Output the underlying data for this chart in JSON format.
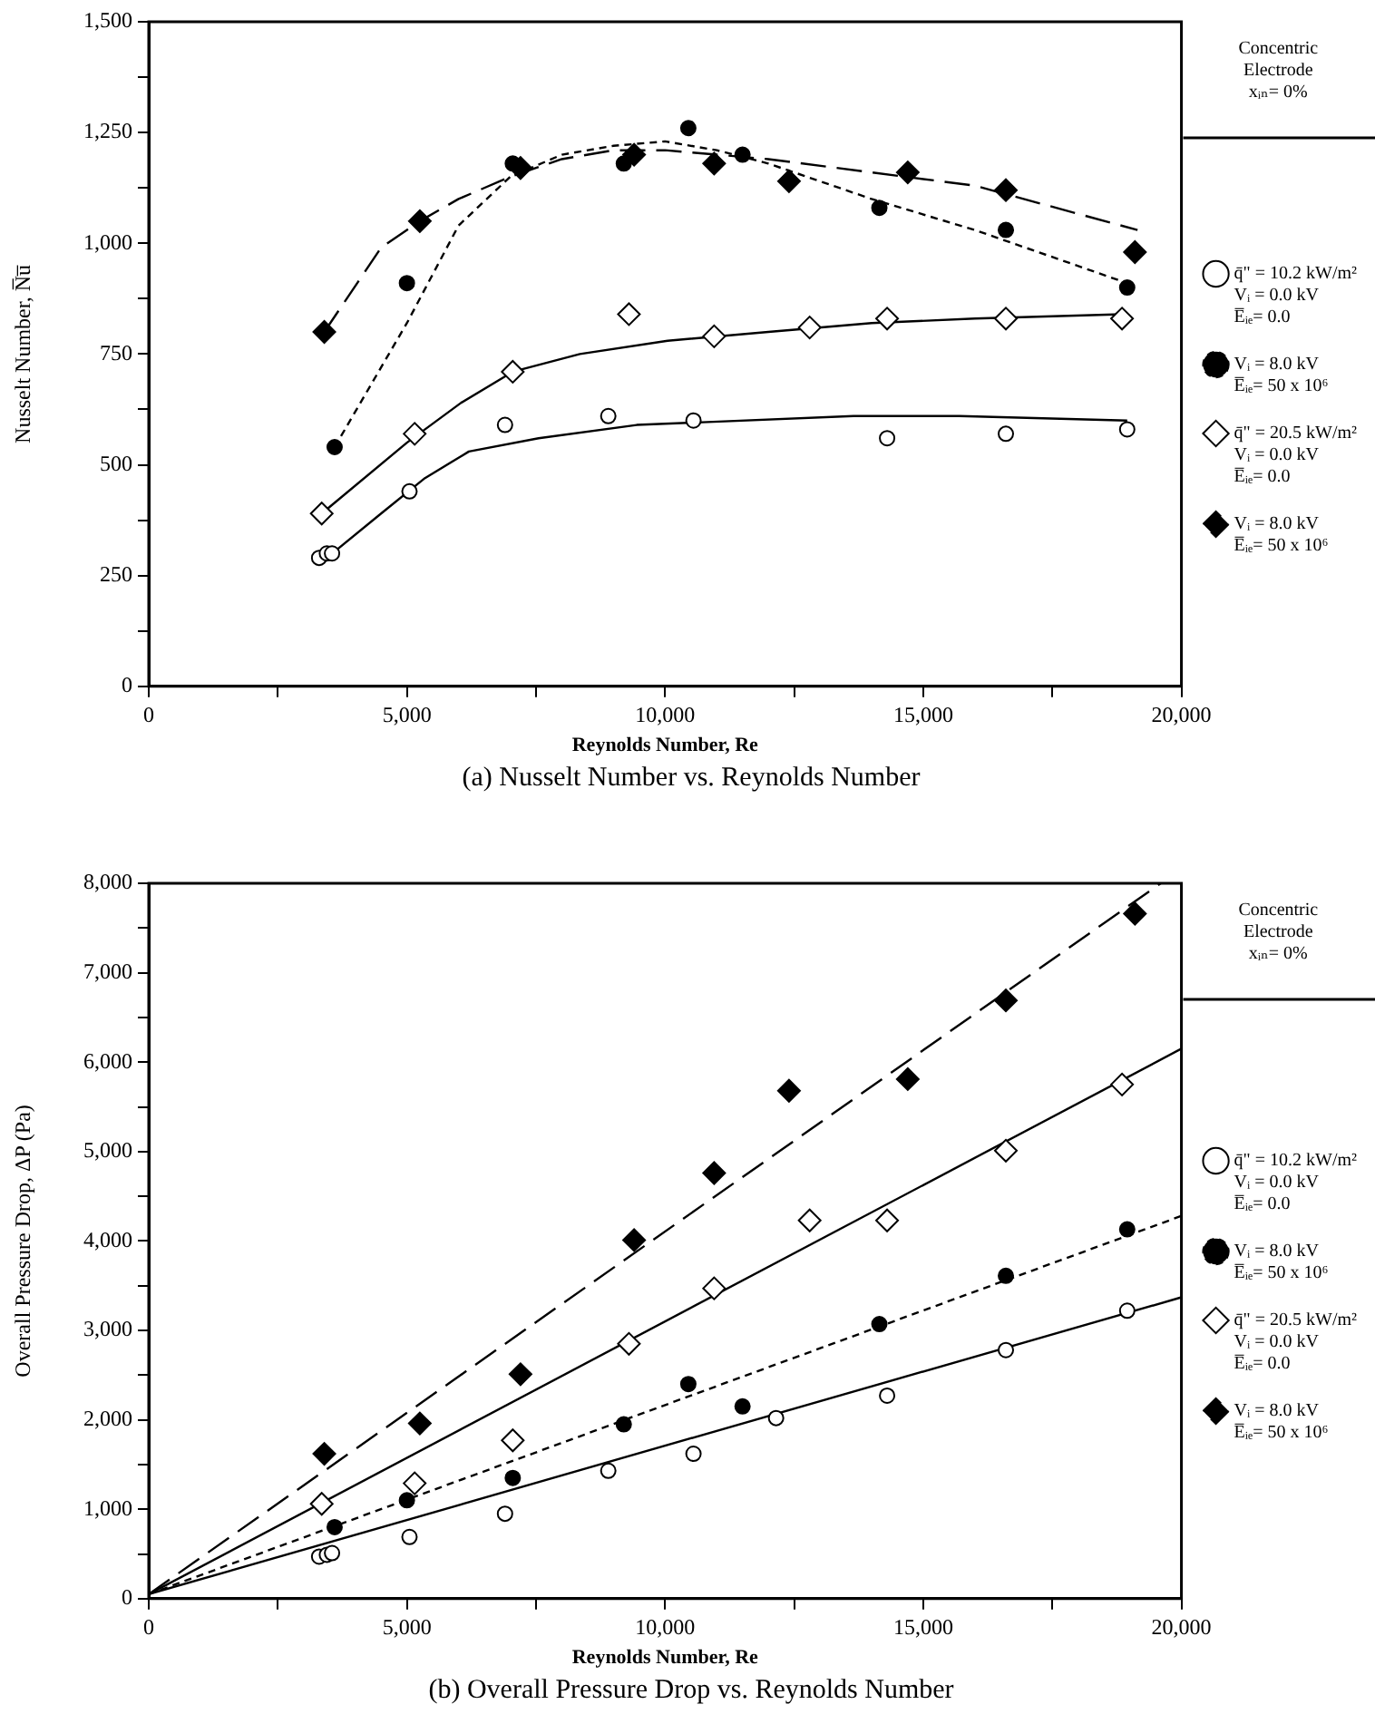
{
  "chart_data": [
    {
      "type": "scatter",
      "title": "(a) Nusselt Number vs. Reynolds Number",
      "xlabel": "Reynolds Number, Re",
      "ylabel": "Nusselt Number, N̅u̅",
      "legend_title": "Concentric\nElectrode\nxᵢₙ= 0%",
      "legend": "right",
      "grid": false,
      "xlim": [
        0,
        20000
      ],
      "xticks": [
        0,
        {
          "value": 2500,
          "label": null
        },
        {
          "value": 5000,
          "label": "5,000"
        },
        {
          "value": 7500,
          "label": null
        },
        {
          "value": 10000,
          "label": "10,000"
        },
        {
          "value": 12500,
          "label": null
        },
        {
          "value": 15000,
          "label": "15,000"
        },
        {
          "value": 17500,
          "label": null
        },
        {
          "value": 20000,
          "label": "20,000"
        }
      ],
      "ylim": [
        0,
        1500
      ],
      "yticks": [
        0,
        {
          "value": 125,
          "label": null
        },
        250,
        {
          "value": 375,
          "label": null
        },
        500,
        {
          "value": 625,
          "label": null
        },
        750,
        {
          "value": 875,
          "label": null
        },
        {
          "value": 1000,
          "label": "1,000"
        },
        {
          "value": 1125,
          "label": null
        },
        {
          "value": 1250,
          "label": "1,250"
        },
        {
          "value": 1375,
          "label": null
        },
        {
          "value": 1500,
          "label": "1,500"
        }
      ],
      "series": [
        {
          "name": "q̄\" = 10.2 kW/m²\nVᵢ = 0.0 kV\nE̅ᵢₑ= 0.0",
          "type": "scatter",
          "marker": "circle",
          "color": "#ffffff",
          "x": [
            3300,
            3450,
            3550,
            5050,
            6900,
            8900,
            10550,
            14300,
            16600,
            18950
          ],
          "values": [
            290,
            300,
            300,
            440,
            590,
            610,
            600,
            560,
            570,
            580
          ]
        },
        {
          "name": "Vᵢ = 8.0 kV\nE̅ᵢₑ= 50 x 10⁶",
          "type": "scatter",
          "marker": "circle",
          "color": "#000000",
          "x": [
            3600,
            5000,
            7050,
            9200,
            10450,
            11500,
            14150,
            16600,
            18950
          ],
          "values": [
            540,
            910,
            1180,
            1180,
            1260,
            1200,
            1080,
            1030,
            900
          ]
        },
        {
          "name": "q̄\" = 20.5 kW/m²\nVᵢ = 0.0 kV\nE̅ᵢₑ= 0.0",
          "type": "scatter",
          "marker": "diamond",
          "color": "#ffffff",
          "x": [
            3350,
            5150,
            7050,
            9300,
            10950,
            12800,
            14300,
            16600,
            18850
          ],
          "values": [
            390,
            570,
            710,
            840,
            790,
            810,
            830,
            830,
            830
          ]
        },
        {
          "name": "Vᵢ = 8.0 kV\nE̅ᵢₑ= 50 x 10⁶",
          "type": "scatter",
          "marker": "diamond",
          "color": "#000000",
          "x": [
            3400,
            5250,
            7200,
            9400,
            10950,
            12400,
            14700,
            16600,
            19100
          ],
          "values": [
            800,
            1050,
            1170,
            1200,
            1180,
            1140,
            1160,
            1120,
            980
          ]
        },
        {
          "type": "line",
          "line_style": "solid",
          "color": "#000000",
          "x": [
            3450,
            4500,
            5350,
            6200,
            7550,
            9450,
            13650,
            15700,
            18950
          ],
          "values": [
            290,
            390,
            470,
            530,
            560,
            590,
            610,
            610,
            600
          ]
        },
        {
          "type": "line",
          "line_style": "dotted",
          "color": "#000000",
          "x": [
            3600,
            5000,
            6000,
            7000,
            8000,
            9000,
            10000,
            11000,
            12000,
            13000,
            14000,
            16000,
            18950
          ],
          "values": [
            540,
            820,
            1040,
            1150,
            1200,
            1220,
            1230,
            1210,
            1180,
            1140,
            1100,
            1030,
            910
          ]
        },
        {
          "type": "line",
          "line_style": "solid",
          "color": "#000000",
          "x": [
            3350,
            5000,
            6050,
            7050,
            8350,
            10050,
            12000,
            14000,
            16000,
            18850
          ],
          "values": [
            390,
            550,
            640,
            710,
            750,
            780,
            800,
            820,
            830,
            840
          ]
        },
        {
          "type": "line",
          "line_style": "dashed",
          "color": "#000000",
          "x": [
            3400,
            4500,
            5250,
            6000,
            7000,
            8000,
            9000,
            10000,
            11000,
            12000,
            14000,
            16000,
            19150
          ],
          "values": [
            800,
            990,
            1050,
            1100,
            1150,
            1190,
            1210,
            1210,
            1200,
            1190,
            1160,
            1130,
            1030
          ]
        }
      ]
    },
    {
      "type": "scatter",
      "title": "(b) Overall Pressure Drop vs. Reynolds Number",
      "xlabel": "Reynolds Number, Re",
      "ylabel": "Overall Pressure Drop, ΔP (Pa)",
      "legend_title": "Concentric\nElectrode\nxᵢₙ= 0%",
      "legend": "right",
      "grid": false,
      "xlim": [
        0,
        20000
      ],
      "xticks": [
        0,
        {
          "value": 2500,
          "label": null
        },
        {
          "value": 5000,
          "label": "5,000"
        },
        {
          "value": 7500,
          "label": null
        },
        {
          "value": 10000,
          "label": "10,000"
        },
        {
          "value": 12500,
          "label": null
        },
        {
          "value": 15000,
          "label": "15,000"
        },
        {
          "value": 17500,
          "label": null
        },
        {
          "value": 20000,
          "label": "20,000"
        }
      ],
      "ylim": [
        0,
        8000
      ],
      "yticks": [
        0,
        {
          "value": 500,
          "label": null
        },
        {
          "value": 1000,
          "label": "1,000"
        },
        {
          "value": 1500,
          "label": null
        },
        {
          "value": 2000,
          "label": "2,000"
        },
        {
          "value": 2500,
          "label": null
        },
        {
          "value": 3000,
          "label": "3,000"
        },
        {
          "value": 3500,
          "label": null
        },
        {
          "value": 4000,
          "label": "4,000"
        },
        {
          "value": 4500,
          "label": null
        },
        {
          "value": 5000,
          "label": "5,000"
        },
        {
          "value": 5500,
          "label": null
        },
        {
          "value": 6000,
          "label": "6,000"
        },
        {
          "value": 6500,
          "label": null
        },
        {
          "value": 7000,
          "label": "7,000"
        },
        {
          "value": 7500,
          "label": null
        },
        {
          "value": 8000,
          "label": "8,000"
        }
      ],
      "series": [
        {
          "name": "q̄\" = 10.2 kW/m²\nVᵢ = 0.0 kV\nE̅ᵢₑ= 0.0",
          "type": "scatter",
          "marker": "circle",
          "color": "#ffffff",
          "x": [
            3300,
            3450,
            3550,
            5050,
            6900,
            8900,
            10550,
            12150,
            14300,
            16600,
            18950
          ],
          "values": [
            470,
            490,
            510,
            690,
            950,
            1430,
            1620,
            2020,
            2270,
            2780,
            3220
          ]
        },
        {
          "name": "Vᵢ = 8.0 kV\nE̅ᵢₑ= 50 x 10⁶",
          "type": "scatter",
          "marker": "circle",
          "color": "#000000",
          "x": [
            3600,
            5000,
            7050,
            9200,
            10450,
            11500,
            14150,
            16600,
            18950
          ],
          "values": [
            800,
            1100,
            1350,
            1950,
            2400,
            2150,
            3070,
            3610,
            4130
          ]
        },
        {
          "name": "q̄\" = 20.5 kW/m²\nVᵢ = 0.0 kV\nE̅ᵢₑ= 0.0",
          "type": "scatter",
          "marker": "diamond",
          "color": "#ffffff",
          "x": [
            3350,
            5150,
            7050,
            9300,
            10950,
            12800,
            14300,
            16600,
            18850
          ],
          "values": [
            1060,
            1290,
            1770,
            2850,
            3470,
            4230,
            4230,
            5010,
            5750
          ]
        },
        {
          "name": "Vᵢ = 8.0 kV\nE̅ᵢₑ= 50 x 10⁶",
          "type": "scatter",
          "marker": "diamond",
          "color": "#000000",
          "x": [
            3400,
            5250,
            7200,
            9400,
            10950,
            12400,
            14700,
            16600,
            19100
          ],
          "values": [
            1620,
            1960,
            2510,
            4010,
            4760,
            5680,
            5810,
            6690,
            7660
          ]
        },
        {
          "type": "line",
          "line_style": "solid",
          "color": "#000000",
          "x": [
            0,
            20000
          ],
          "values": [
            50,
            3370
          ]
        },
        {
          "type": "line",
          "line_style": "dotted",
          "color": "#000000",
          "x": [
            0,
            20000
          ],
          "values": [
            50,
            4280
          ]
        },
        {
          "type": "line",
          "line_style": "solid",
          "color": "#000000",
          "x": [
            0,
            20000
          ],
          "values": [
            50,
            6150
          ]
        },
        {
          "type": "line",
          "line_style": "dashed",
          "color": "#000000",
          "x": [
            0,
            19600
          ],
          "values": [
            50,
            8000
          ]
        }
      ]
    }
  ]
}
